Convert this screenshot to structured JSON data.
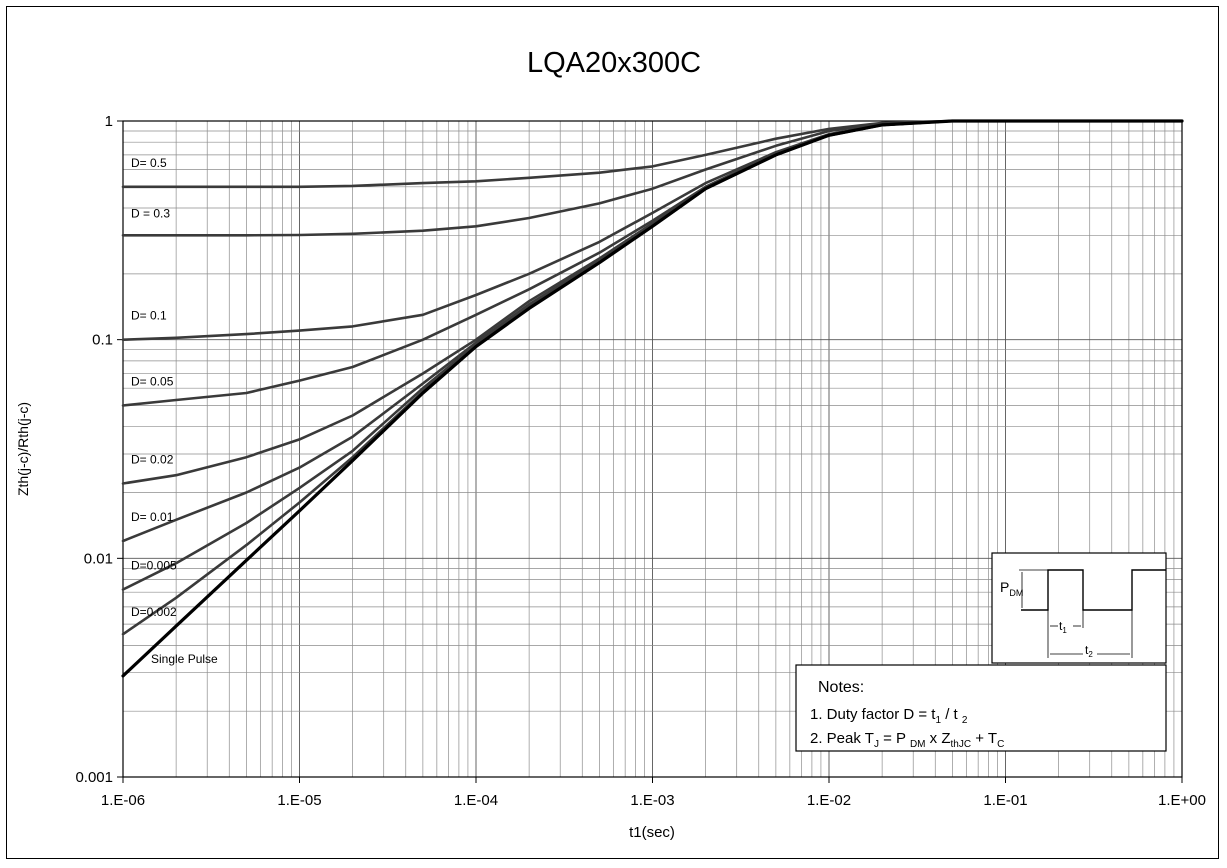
{
  "chart_data": {
    "type": "line",
    "title": "LQA20x300C",
    "xlabel": "t1(sec)",
    "ylabel": "Zth(j-c)/Rth(j-c)",
    "x_scale": "log",
    "y_scale": "log",
    "xlim": [
      1e-06,
      1
    ],
    "ylim": [
      0.001,
      1
    ],
    "grid": true,
    "x_tick_labels": [
      "1.E-06",
      "1.E-05",
      "1.E-04",
      "1.E-03",
      "1.E-02",
      "1.E-01",
      "1.E+00"
    ],
    "y_tick_labels": [
      "0.001",
      "0.01",
      "0.1",
      "1"
    ],
    "x": [
      1e-06,
      2e-06,
      5e-06,
      1e-05,
      2e-05,
      5e-05,
      0.0001,
      0.0002,
      0.0005,
      0.001,
      0.002,
      0.005,
      0.01,
      0.02,
      0.05,
      0.1,
      1
    ],
    "series": [
      {
        "name": "D= 0.5",
        "values": [
          0.5,
          0.5,
          0.5,
          0.5,
          0.505,
          0.52,
          0.53,
          0.55,
          0.58,
          0.62,
          0.7,
          0.83,
          0.92,
          0.98,
          1,
          1,
          1
        ]
      },
      {
        "name": "D = 0.3",
        "values": [
          0.3,
          0.3,
          0.3,
          0.301,
          0.305,
          0.315,
          0.33,
          0.36,
          0.42,
          0.49,
          0.6,
          0.77,
          0.9,
          0.97,
          1,
          1,
          1
        ]
      },
      {
        "name": "D= 0.1",
        "values": [
          0.1,
          0.102,
          0.106,
          0.11,
          0.115,
          0.13,
          0.16,
          0.2,
          0.28,
          0.38,
          0.52,
          0.72,
          0.87,
          0.96,
          1,
          1,
          1
        ]
      },
      {
        "name": "D= 0.05",
        "values": [
          0.05,
          0.053,
          0.057,
          0.065,
          0.075,
          0.1,
          0.13,
          0.17,
          0.25,
          0.35,
          0.5,
          0.71,
          0.86,
          0.96,
          1,
          1,
          1
        ]
      },
      {
        "name": "D= 0.02",
        "values": [
          0.022,
          0.024,
          0.029,
          0.035,
          0.045,
          0.07,
          0.1,
          0.15,
          0.235,
          0.34,
          0.49,
          0.7,
          0.86,
          0.96,
          1,
          1,
          1
        ]
      },
      {
        "name": "D= 0.01",
        "values": [
          0.012,
          0.015,
          0.02,
          0.026,
          0.036,
          0.063,
          0.097,
          0.145,
          0.23,
          0.335,
          0.49,
          0.7,
          0.86,
          0.96,
          1,
          1,
          1
        ]
      },
      {
        "name": "D=0.005",
        "values": [
          0.0072,
          0.0095,
          0.0145,
          0.021,
          0.031,
          0.06,
          0.095,
          0.142,
          0.228,
          0.33,
          0.49,
          0.7,
          0.86,
          0.96,
          1,
          1,
          1
        ]
      },
      {
        "name": "D=0.002",
        "values": [
          0.0045,
          0.0066,
          0.0115,
          0.018,
          0.029,
          0.058,
          0.094,
          0.14,
          0.226,
          0.33,
          0.49,
          0.7,
          0.86,
          0.96,
          1,
          1,
          1
        ]
      },
      {
        "name": "Single Pulse",
        "values": [
          0.0029,
          0.0049,
          0.0098,
          0.0165,
          0.028,
          0.057,
          0.093,
          0.139,
          0.225,
          0.33,
          0.49,
          0.7,
          0.86,
          0.96,
          1,
          1,
          1
        ]
      }
    ],
    "notes": {
      "heading": "Notes:",
      "line1_prefix": "1. Duty factor D = t",
      "line1_sub1": "1",
      "line1_mid": " / t ",
      "line1_sub2": "2",
      "line2_a": "2. Peak T",
      "line2_sub_j": "J",
      "line2_b": " = P ",
      "line2_sub_dm": "DM",
      "line2_c": " x  Z",
      "line2_sub_thjc": "thJC",
      "line2_d": "  + T",
      "line2_sub_c": "C"
    },
    "pulse_diagram": {
      "p_label": "P",
      "p_sub": "DM",
      "t1_label": "t",
      "t1_sub": "1",
      "t2_label": "t",
      "t2_sub": "2"
    }
  }
}
